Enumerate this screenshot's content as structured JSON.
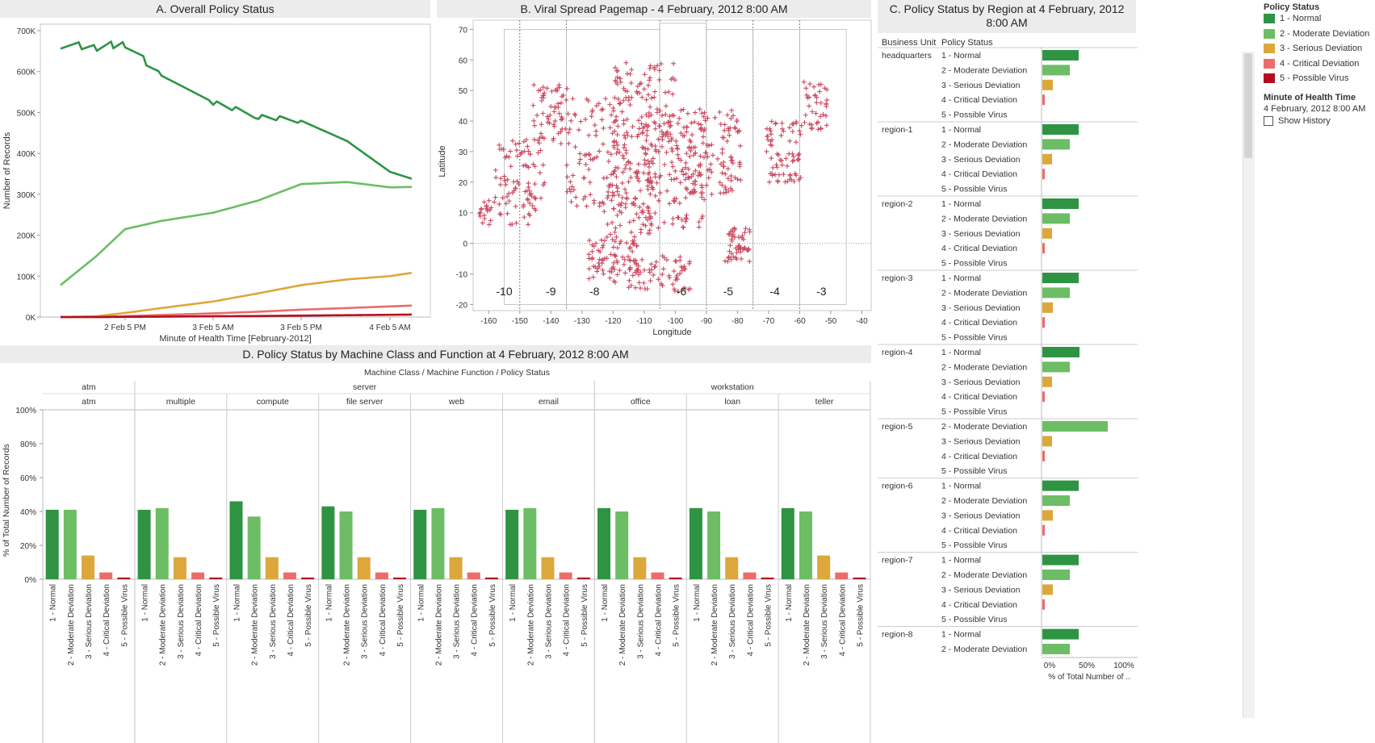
{
  "colors": {
    "normal": "#2e9443",
    "moderate": "#6cbd64",
    "serious": "#dca73b",
    "critical": "#ec6b6b",
    "virus": "#b40f20"
  },
  "panelA": {
    "title": "A. Overall Policy Status",
    "ylabel": "Number of Records",
    "xlabel": "Minute of Health Time [February-2012]",
    "yticks": [
      "0K",
      "100K",
      "200K",
      "300K",
      "400K",
      "500K",
      "600K",
      "700K"
    ],
    "xticks": [
      "2 Feb 5 PM",
      "3 Feb 5 AM",
      "3 Feb 5 PM",
      "4 Feb 5 AM"
    ]
  },
  "panelB": {
    "title": "B. Viral Spread Pagemap - 4 February, 2012 8:00 AM",
    "ylabel": "Latitude",
    "xlabel": "Longitude",
    "xticks": [
      "-160",
      "-150",
      "-140",
      "-130",
      "-120",
      "-110",
      "-100",
      "-90",
      "-80",
      "-70",
      "-60",
      "-50",
      "-40"
    ],
    "yticks": [
      "-20",
      "-10",
      "0",
      "10",
      "20",
      "30",
      "40",
      "50",
      "60",
      "70"
    ],
    "zones": [
      "-10",
      "-9",
      "-8",
      "-6",
      "-5",
      "-4",
      "-3"
    ]
  },
  "panelC": {
    "title": "C. Policy Status by Region at 4 February, 2012 8:00 AM",
    "col_business_unit": "Business Unit",
    "col_policy_status": "Policy Status",
    "xticks": [
      "0%",
      "50%",
      "100%"
    ],
    "xlabel": "% of Total Number of ..",
    "groups": [
      {
        "name": "headquarters",
        "rows": [
          [
            "1 - Normal",
            0.45
          ],
          [
            "2 - Moderate Deviation",
            0.34
          ],
          [
            "3 - Serious Deviation",
            0.13
          ],
          [
            "4 - Critical Deviation",
            0.03
          ],
          [
            "5 - Possible Virus",
            0.0
          ]
        ]
      },
      {
        "name": "region-1",
        "rows": [
          [
            "1 - Normal",
            0.45
          ],
          [
            "2 - Moderate Deviation",
            0.34
          ],
          [
            "3 - Serious Deviation",
            0.12
          ],
          [
            "4 - Critical Deviation",
            0.03
          ],
          [
            "5 - Possible Virus",
            0.0
          ]
        ]
      },
      {
        "name": "region-2",
        "rows": [
          [
            "1 - Normal",
            0.45
          ],
          [
            "2 - Moderate Deviation",
            0.34
          ],
          [
            "3 - Serious Deviation",
            0.12
          ],
          [
            "4 - Critical Deviation",
            0.03
          ],
          [
            "5 - Possible Virus",
            0.0
          ]
        ]
      },
      {
        "name": "region-3",
        "rows": [
          [
            "1 - Normal",
            0.45
          ],
          [
            "2 - Moderate Deviation",
            0.34
          ],
          [
            "3 - Serious Deviation",
            0.13
          ],
          [
            "4 - Critical Deviation",
            0.03
          ],
          [
            "5 - Possible Virus",
            0.0
          ]
        ]
      },
      {
        "name": "region-4",
        "rows": [
          [
            "1 - Normal",
            0.46
          ],
          [
            "2 - Moderate Deviation",
            0.34
          ],
          [
            "3 - Serious Deviation",
            0.12
          ],
          [
            "4 - Critical Deviation",
            0.03
          ],
          [
            "5 - Possible Virus",
            0.0
          ]
        ]
      },
      {
        "name": "region-5",
        "rows": [
          [
            "2 - Moderate Deviation",
            0.81
          ],
          [
            "3 - Serious Deviation",
            0.12
          ],
          [
            "4 - Critical Deviation",
            0.03
          ],
          [
            "5 - Possible Virus",
            0.0
          ]
        ]
      },
      {
        "name": "region-6",
        "rows": [
          [
            "1 - Normal",
            0.45
          ],
          [
            "2 - Moderate Deviation",
            0.34
          ],
          [
            "3 - Serious Deviation",
            0.13
          ],
          [
            "4 - Critical Deviation",
            0.03
          ],
          [
            "5 - Possible Virus",
            0.0
          ]
        ]
      },
      {
        "name": "region-7",
        "rows": [
          [
            "1 - Normal",
            0.45
          ],
          [
            "2 - Moderate Deviation",
            0.34
          ],
          [
            "3 - Serious Deviation",
            0.13
          ],
          [
            "4 - Critical Deviation",
            0.03
          ],
          [
            "5 - Possible Virus",
            0.0
          ]
        ]
      },
      {
        "name": "region-8",
        "rows": [
          [
            "1 - Normal",
            0.45
          ],
          [
            "2 - Moderate Deviation",
            0.34
          ]
        ]
      }
    ]
  },
  "panelD": {
    "title": "D. Policy Status by Machine Class and Function at 4 February, 2012 8:00 AM",
    "header_line": "Machine Class  /  Machine Function  /  Policy Status",
    "ylabel": "% of Total Number of Records",
    "yticks": [
      "0%",
      "20%",
      "40%",
      "60%",
      "80%",
      "100%"
    ],
    "status_labels": [
      "1 - Normal",
      "2 - Moderate Deviation",
      "3 - Serious Deviation",
      "4 - Critical Deviation",
      "5 - Possible Virus"
    ],
    "classes": [
      {
        "name": "atm",
        "functions": [
          {
            "name": "atm",
            "values": [
              41,
              41,
              14,
              4,
              1
            ]
          }
        ]
      },
      {
        "name": "server",
        "functions": [
          {
            "name": "multiple",
            "values": [
              41,
              42,
              13,
              4,
              1
            ]
          },
          {
            "name": "compute",
            "values": [
              46,
              37,
              13,
              4,
              1
            ]
          },
          {
            "name": "file server",
            "values": [
              43,
              40,
              13,
              4,
              1
            ]
          },
          {
            "name": "web",
            "values": [
              41,
              42,
              13,
              4,
              1
            ]
          },
          {
            "name": "email",
            "values": [
              41,
              42,
              13,
              4,
              1
            ]
          }
        ]
      },
      {
        "name": "workstation",
        "functions": [
          {
            "name": "office",
            "values": [
              42,
              40,
              13,
              4,
              1
            ]
          },
          {
            "name": "loan",
            "values": [
              42,
              40,
              13,
              4,
              1
            ]
          },
          {
            "name": "teller",
            "values": [
              42,
              40,
              14,
              4,
              1
            ]
          }
        ]
      }
    ]
  },
  "legend": {
    "title": "Policy Status",
    "items": [
      "1 - Normal",
      "2 - Moderate Deviation",
      "3 - Serious Deviation",
      "4 - Critical Deviation",
      "5 - Possible Virus"
    ],
    "time_title": "Minute of Health Time",
    "time_value": "4 February, 2012 8:00 AM",
    "show_history": "Show History"
  },
  "chart_data": [
    {
      "type": "line",
      "title": "A. Overall Policy Status",
      "xlabel": "Minute of Health Time [February-2012]",
      "ylabel": "Number of Records",
      "ylim": [
        0,
        700000
      ],
      "x": [
        "2 Feb 5 AM",
        "2 Feb 11 AM",
        "2 Feb 5 PM",
        "2 Feb 11 PM",
        "3 Feb 5 AM",
        "3 Feb 11 AM",
        "3 Feb 5 PM",
        "3 Feb 11 PM",
        "4 Feb 5 AM",
        "4 Feb 8 AM"
      ],
      "series": [
        {
          "name": "1 - Normal",
          "values": [
            665000,
            660000,
            668000,
            590000,
            525000,
            490000,
            480000,
            430000,
            355000,
            338000
          ]
        },
        {
          "name": "2 - Moderate Deviation",
          "values": [
            78000,
            150000,
            215000,
            235000,
            255000,
            285000,
            325000,
            330000,
            317000,
            318000
          ]
        },
        {
          "name": "3 - Serious Deviation",
          "values": [
            0,
            2000,
            10000,
            22000,
            38000,
            58000,
            78000,
            92000,
            100000,
            108000
          ]
        },
        {
          "name": "4 - Critical Deviation",
          "values": [
            0,
            0,
            2000,
            5000,
            9000,
            13000,
            18000,
            22000,
            26000,
            28000
          ]
        },
        {
          "name": "5 - Possible Virus",
          "values": [
            0,
            0,
            500,
            1000,
            2000,
            2500,
            3500,
            4500,
            5500,
            6000
          ]
        }
      ]
    },
    {
      "type": "scatter",
      "title": "B. Viral Spread Pagemap - 4 February, 2012 8:00 AM",
      "xlabel": "Longitude",
      "ylabel": "Latitude",
      "xlim": [
        -165,
        -37
      ],
      "ylim": [
        -22,
        73
      ]
    },
    {
      "type": "bar",
      "title": "C. Policy Status by Region at 4 February, 2012 8:00 AM",
      "xlabel": "% of Total Number of ..",
      "xlim": [
        0,
        1.15
      ]
    },
    {
      "type": "bar",
      "title": "D. Policy Status by Machine Class and Function at 4 February, 2012 8:00 AM",
      "ylabel": "% of Total Number of Records",
      "ylim": [
        0,
        100
      ]
    }
  ]
}
